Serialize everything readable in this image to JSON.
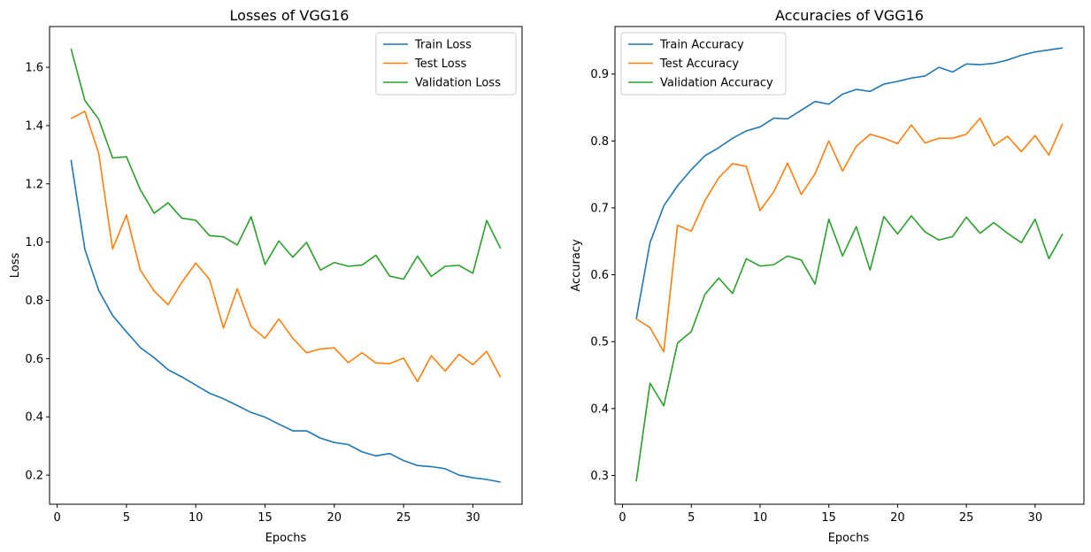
{
  "chart_data": [
    {
      "type": "line",
      "title": "Losses of VGG16",
      "xlabel": "Epochs",
      "ylabel": "Loss",
      "xlim": [
        -0.55,
        33.55
      ],
      "ylim": [
        0.1,
        1.74
      ],
      "xticks": [
        0,
        5,
        10,
        15,
        20,
        25,
        30
      ],
      "yticks": [
        0.2,
        0.4,
        0.6,
        0.8,
        1.0,
        1.2,
        1.4,
        1.6
      ],
      "ytick_labels": [
        "0.2",
        "0.4",
        "0.6",
        "0.8",
        "1.0",
        "1.2",
        "1.4",
        "1.6"
      ],
      "legend_loc": "top-right",
      "x": [
        1,
        2,
        3,
        4,
        5,
        6,
        7,
        8,
        9,
        10,
        11,
        12,
        13,
        14,
        15,
        16,
        17,
        18,
        19,
        20,
        21,
        22,
        23,
        24,
        25,
        26,
        27,
        28,
        29,
        30,
        31,
        32
      ],
      "series": [
        {
          "name": "Train Loss",
          "color": "#1f77b4",
          "values": [
            1.282,
            0.975,
            0.834,
            0.748,
            0.692,
            0.638,
            0.603,
            0.562,
            0.537,
            0.509,
            0.481,
            0.462,
            0.439,
            0.415,
            0.399,
            0.375,
            0.352,
            0.352,
            0.327,
            0.312,
            0.305,
            0.28,
            0.266,
            0.274,
            0.25,
            0.233,
            0.229,
            0.222,
            0.2,
            0.191,
            0.185,
            0.176
          ]
        },
        {
          "name": "Test Loss",
          "color": "#ff7f0e",
          "values": [
            1.424,
            1.449,
            1.304,
            0.976,
            1.093,
            0.904,
            0.832,
            0.785,
            0.862,
            0.928,
            0.872,
            0.705,
            0.84,
            0.71,
            0.67,
            0.736,
            0.67,
            0.62,
            0.633,
            0.637,
            0.586,
            0.62,
            0.585,
            0.583,
            0.602,
            0.521,
            0.61,
            0.557,
            0.615,
            0.579,
            0.625,
            0.536
          ]
        },
        {
          "name": "Validation Loss",
          "color": "#2ca02c",
          "values": [
            1.664,
            1.486,
            1.422,
            1.289,
            1.293,
            1.18,
            1.099,
            1.135,
            1.082,
            1.075,
            1.022,
            1.018,
            0.99,
            1.087,
            0.923,
            1.004,
            0.948,
            0.999,
            0.904,
            0.93,
            0.917,
            0.921,
            0.955,
            0.883,
            0.873,
            0.952,
            0.882,
            0.917,
            0.92,
            0.893,
            1.074,
            0.978
          ]
        }
      ]
    },
    {
      "type": "line",
      "title": "Accuracies of VGG16",
      "xlabel": "Epochs",
      "ylabel": "Accuracy",
      "xlim": [
        -0.55,
        33.55
      ],
      "ylim": [
        0.257,
        0.971
      ],
      "xticks": [
        0,
        5,
        10,
        15,
        20,
        25,
        30
      ],
      "yticks": [
        0.3,
        0.4,
        0.5,
        0.6,
        0.7,
        0.8,
        0.9
      ],
      "ytick_labels": [
        "0.3",
        "0.4",
        "0.5",
        "0.6",
        "0.7",
        "0.8",
        "0.9"
      ],
      "legend_loc": "top-left",
      "x": [
        1,
        2,
        3,
        4,
        5,
        6,
        7,
        8,
        9,
        10,
        11,
        12,
        13,
        14,
        15,
        16,
        17,
        18,
        19,
        20,
        21,
        22,
        23,
        24,
        25,
        26,
        27,
        28,
        29,
        30,
        31,
        32
      ],
      "series": [
        {
          "name": "Train Accuracy",
          "color": "#1f77b4",
          "values": [
            0.534,
            0.648,
            0.703,
            0.733,
            0.757,
            0.778,
            0.79,
            0.804,
            0.815,
            0.821,
            0.834,
            0.833,
            0.846,
            0.859,
            0.855,
            0.87,
            0.877,
            0.874,
            0.885,
            0.889,
            0.894,
            0.897,
            0.91,
            0.903,
            0.915,
            0.914,
            0.916,
            0.921,
            0.928,
            0.933,
            0.936,
            0.939
          ]
        },
        {
          "name": "Test Accuracy",
          "color": "#ff7f0e",
          "values": [
            0.534,
            0.521,
            0.485,
            0.674,
            0.665,
            0.711,
            0.745,
            0.766,
            0.762,
            0.696,
            0.724,
            0.767,
            0.72,
            0.751,
            0.8,
            0.755,
            0.792,
            0.81,
            0.804,
            0.796,
            0.824,
            0.797,
            0.804,
            0.804,
            0.81,
            0.834,
            0.793,
            0.807,
            0.784,
            0.808,
            0.779,
            0.826
          ]
        },
        {
          "name": "Validation Accuracy",
          "color": "#2ca02c",
          "values": [
            0.291,
            0.438,
            0.404,
            0.498,
            0.515,
            0.571,
            0.595,
            0.572,
            0.624,
            0.613,
            0.615,
            0.628,
            0.622,
            0.586,
            0.683,
            0.628,
            0.672,
            0.607,
            0.687,
            0.661,
            0.688,
            0.664,
            0.652,
            0.657,
            0.686,
            0.662,
            0.678,
            0.662,
            0.648,
            0.683,
            0.624,
            0.661
          ]
        }
      ]
    }
  ]
}
